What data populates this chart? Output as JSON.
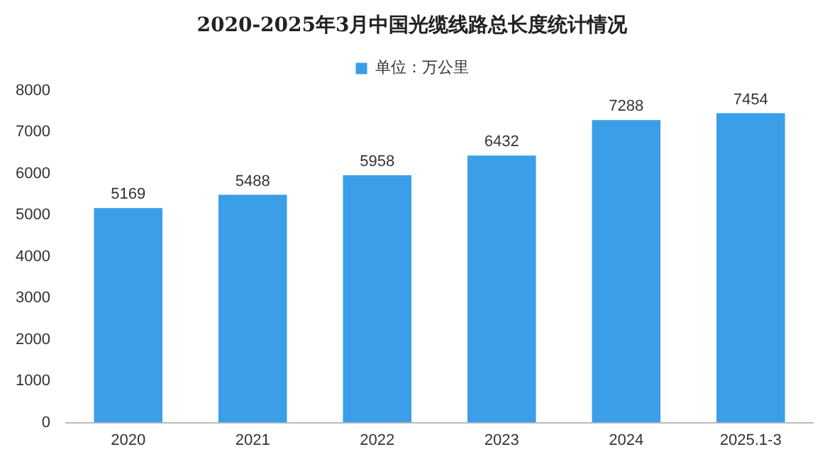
{
  "chart_data": {
    "type": "bar",
    "title": "2020-2025年3月中国光缆线路总长度统计情况",
    "categories": [
      "2020",
      "2021",
      "2022",
      "2023",
      "2024",
      "2025.1-3"
    ],
    "series": [
      {
        "name": "单位：万公里",
        "color": "#3a9ee8",
        "values": [
          5169,
          5488,
          5958,
          6432,
          7288,
          7454
        ]
      }
    ],
    "ylim": [
      0,
      8000
    ],
    "yticks": [
      0,
      1000,
      2000,
      3000,
      4000,
      5000,
      6000,
      7000,
      8000
    ],
    "grid": false,
    "legend": "top",
    "data_labels": true
  }
}
